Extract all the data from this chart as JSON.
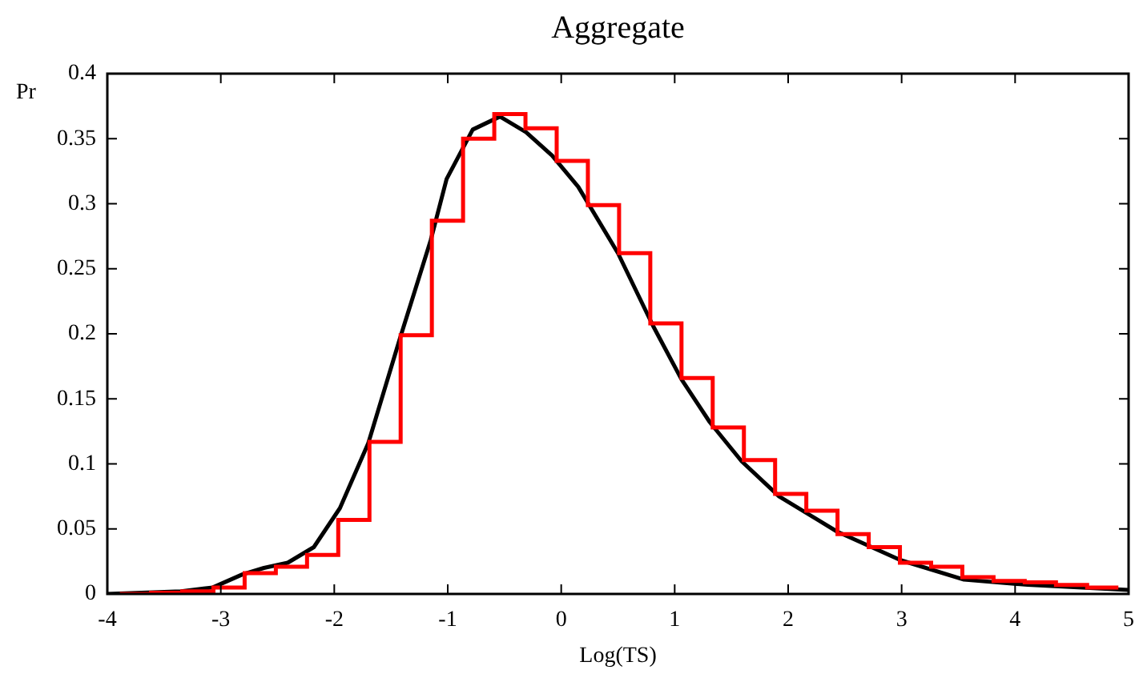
{
  "chart_data": {
    "type": "histogram",
    "title": "Aggregate",
    "xlabel": "Log(TS)",
    "ylabel": "Pr",
    "xlim": [
      -4,
      5
    ],
    "xticks": [
      -4,
      -3,
      -2,
      -1,
      0,
      1,
      2,
      3,
      4,
      5
    ],
    "ylim": [
      0,
      0.4
    ],
    "yticks": [
      0,
      0.05,
      0.1,
      0.15,
      0.2,
      0.25,
      0.3,
      0.35,
      0.4
    ],
    "grid": false,
    "legend": false,
    "series": [
      {
        "color": "#ff0000",
        "bins": [
          -3.89,
          -3.615,
          -3.34,
          -3.065,
          -2.79,
          -2.515,
          -2.24,
          -1.965,
          -1.69,
          -1.415,
          -1.14,
          -0.865,
          -0.59,
          -0.315,
          -0.04,
          0.235,
          0.51,
          0.785,
          1.06,
          1.335,
          1.61,
          1.885,
          2.16,
          2.435,
          2.71,
          2.985,
          3.26,
          3.535,
          3.81,
          4.085,
          4.36,
          4.635,
          4.91
        ],
        "values": [
          0,
          0.001,
          0.002,
          0.005,
          0.016,
          0.021,
          0.03,
          0.057,
          0.117,
          0.199,
          0.287,
          0.35,
          0.369,
          0.358,
          0.333,
          0.299,
          0.262,
          0.208,
          0.166,
          0.128,
          0.103,
          0.077,
          0.064,
          0.046,
          0.036,
          0.024,
          0.021,
          0.013,
          0.01,
          0.009,
          0.007,
          0.005
        ]
      },
      {
        "type": "line",
        "color": "#000000",
        "x": [
          -4,
          -3.35,
          -3.07,
          -2.81,
          -2.62,
          -2.41,
          -2.18,
          -1.95,
          -1.7,
          -1.43,
          -1.15,
          -1.01,
          -0.78,
          -0.54,
          -0.31,
          -0.08,
          0.15,
          0.5,
          0.81,
          1.06,
          1.31,
          1.59,
          1.92,
          2.43,
          2.99,
          3.55,
          4.11,
          5
        ],
        "values": [
          0,
          0.002,
          0.005,
          0.015,
          0.02,
          0.024,
          0.036,
          0.066,
          0.116,
          0.194,
          0.272,
          0.319,
          0.357,
          0.367,
          0.355,
          0.337,
          0.313,
          0.262,
          0.206,
          0.165,
          0.132,
          0.102,
          0.075,
          0.048,
          0.026,
          0.011,
          0.007,
          0.003
        ]
      }
    ]
  }
}
